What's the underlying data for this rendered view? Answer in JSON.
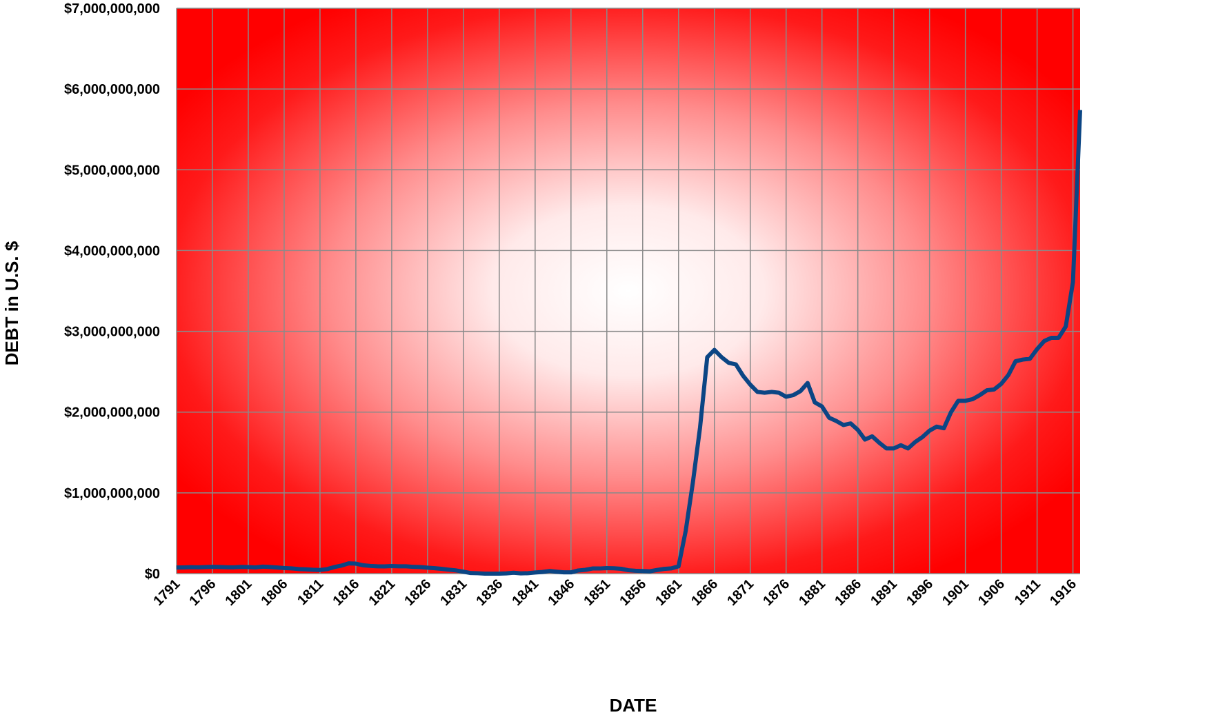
{
  "chart_data": {
    "type": "line",
    "xlabel": "DATE",
    "ylabel": "DEBT in U.S. $",
    "x": [
      1791,
      1792,
      1793,
      1794,
      1795,
      1796,
      1797,
      1798,
      1799,
      1800,
      1801,
      1802,
      1803,
      1804,
      1805,
      1806,
      1807,
      1808,
      1809,
      1810,
      1811,
      1812,
      1813,
      1814,
      1815,
      1816,
      1817,
      1818,
      1819,
      1820,
      1821,
      1822,
      1823,
      1824,
      1825,
      1826,
      1827,
      1828,
      1829,
      1830,
      1831,
      1832,
      1833,
      1834,
      1835,
      1836,
      1837,
      1838,
      1839,
      1840,
      1841,
      1842,
      1843,
      1844,
      1845,
      1846,
      1847,
      1848,
      1849,
      1850,
      1851,
      1852,
      1853,
      1854,
      1855,
      1856,
      1857,
      1858,
      1859,
      1860,
      1861,
      1862,
      1863,
      1864,
      1865,
      1866,
      1867,
      1868,
      1869,
      1870,
      1871,
      1872,
      1873,
      1874,
      1875,
      1876,
      1877,
      1878,
      1879,
      1880,
      1881,
      1882,
      1883,
      1884,
      1885,
      1886,
      1887,
      1888,
      1889,
      1890,
      1891,
      1892,
      1893,
      1894,
      1895,
      1896,
      1897,
      1898,
      1899,
      1900,
      1901,
      1902,
      1903,
      1904,
      1905,
      1906,
      1907,
      1908,
      1909,
      1910,
      1911,
      1912,
      1913,
      1914,
      1915,
      1916,
      1917
    ],
    "series": [
      {
        "name": "DEBT",
        "color": "#0b4584",
        "values": [
          75500000,
          77200000,
          80400000,
          78400000,
          80700000,
          83800000,
          82100000,
          79200000,
          78400000,
          83000000,
          80700000,
          77100000,
          86400000,
          82300000,
          75700000,
          69200000,
          65200000,
          57000000,
          53200000,
          48000000,
          45200000,
          56000000,
          81500000,
          99800000,
          127300000,
          123500000,
          103500000,
          95500000,
          91000000,
          90000000,
          93500000,
          90900000,
          90300000,
          83800000,
          81100000,
          74000000,
          67500000,
          58400000,
          48600000,
          39100000,
          24300000,
          7000000,
          4800000,
          40000,
          30000,
          300000,
          3300000,
          10400000,
          3600000,
          5300000,
          13600000,
          20200000,
          32700000,
          23500000,
          15900000,
          15600000,
          38800000,
          47000000,
          63500000,
          63500000,
          68300000,
          66200000,
          59800000,
          42200000,
          35600000,
          32000000,
          28700000,
          44900000,
          58500000,
          64800000,
          90600000,
          530000000,
          1130000000,
          1810000000,
          2680000000,
          2770000000,
          2680000000,
          2610000000,
          2590000000,
          2450000000,
          2340000000,
          2250000000,
          2240000000,
          2250000000,
          2240000000,
          2190000000,
          2210000000,
          2260000000,
          2360000000,
          2120000000,
          2070000000,
          1930000000,
          1890000000,
          1840000000,
          1860000000,
          1780000000,
          1660000000,
          1700000000,
          1620000000,
          1550000000,
          1550000000,
          1590000000,
          1550000000,
          1630000000,
          1690000000,
          1770000000,
          1820000000,
          1800000000,
          2000000000,
          2140000000,
          2140000000,
          2160000000,
          2210000000,
          2270000000,
          2280000000,
          2350000000,
          2460000000,
          2630000000,
          2650000000,
          2660000000,
          2780000000,
          2880000000,
          2920000000,
          2920000000,
          3060000000,
          3610000000,
          5740000000
        ]
      }
    ],
    "xlim": [
      1791,
      1917
    ],
    "xticks": [
      1791,
      1796,
      1801,
      1806,
      1811,
      1816,
      1821,
      1826,
      1831,
      1836,
      1841,
      1846,
      1851,
      1856,
      1861,
      1866,
      1871,
      1876,
      1881,
      1886,
      1891,
      1896,
      1901,
      1906,
      1911,
      1916
    ],
    "ylim": [
      0,
      7000000000
    ],
    "yticks": [
      {
        "value": 0,
        "label": "$0"
      },
      {
        "value": 1000000000,
        "label": "$1,000,000,000"
      },
      {
        "value": 2000000000,
        "label": "$2,000,000,000"
      },
      {
        "value": 3000000000,
        "label": "$3,000,000,000"
      },
      {
        "value": 4000000000,
        "label": "$4,000,000,000"
      },
      {
        "value": 5000000000,
        "label": "$5,000,000,000"
      },
      {
        "value": 6000000000,
        "label": "$6,000,000,000"
      },
      {
        "value": 7000000000,
        "label": "$7,000,000,000"
      }
    ],
    "grid": true
  }
}
